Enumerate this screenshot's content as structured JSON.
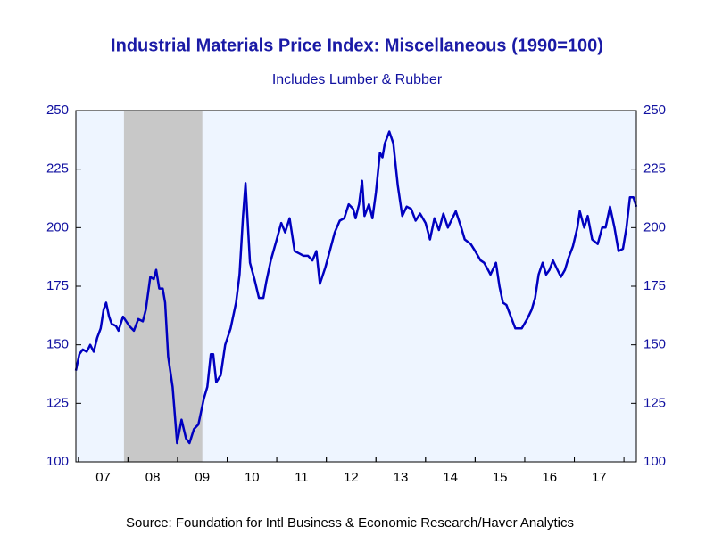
{
  "chart_data": {
    "type": "line",
    "title": "Industrial Materials Price Index: Miscellaneous (1990=100)",
    "subtitle": "Includes Lumber & Rubber",
    "source": "Source:  Foundation for Intl Business & Economic Research/Haver Analytics",
    "xlim": [
      2006.95,
      2018.25
    ],
    "xticks": [
      {
        "value": 2007.5,
        "label": "07"
      },
      {
        "value": 2008.5,
        "label": "08"
      },
      {
        "value": 2009.5,
        "label": "09"
      },
      {
        "value": 2010.5,
        "label": "10"
      },
      {
        "value": 2011.5,
        "label": "11"
      },
      {
        "value": 2012.5,
        "label": "12"
      },
      {
        "value": 2013.5,
        "label": "13"
      },
      {
        "value": 2014.5,
        "label": "14"
      },
      {
        "value": 2015.5,
        "label": "15"
      },
      {
        "value": 2016.5,
        "label": "16"
      },
      {
        "value": 2017.5,
        "label": "17"
      }
    ],
    "ylim": [
      100,
      250
    ],
    "yticks": [
      100,
      125,
      150,
      175,
      200,
      225,
      250
    ],
    "shading": [
      [
        2007.92,
        2009.5
      ]
    ],
    "x": [
      2006.95,
      2007.02,
      2007.09,
      2007.17,
      2007.24,
      2007.31,
      2007.38,
      2007.45,
      2007.51,
      2007.56,
      2007.62,
      2007.67,
      2007.76,
      2007.81,
      2007.9,
      2008.03,
      2008.12,
      2008.21,
      2008.3,
      2008.36,
      2008.45,
      2008.52,
      2008.57,
      2008.63,
      2008.7,
      2008.75,
      2008.81,
      2008.9,
      2008.99,
      2009.08,
      2009.17,
      2009.24,
      2009.33,
      2009.42,
      2009.53,
      2009.6,
      2009.67,
      2009.72,
      2009.78,
      2009.87,
      2009.96,
      2010.07,
      2010.18,
      2010.25,
      2010.32,
      2010.37,
      2010.46,
      2010.55,
      2010.64,
      2010.73,
      2010.79,
      2010.88,
      2011.0,
      2011.09,
      2011.17,
      2011.26,
      2011.36,
      2011.45,
      2011.54,
      2011.63,
      2011.72,
      2011.8,
      2011.87,
      2011.98,
      2012.07,
      2012.17,
      2012.27,
      2012.36,
      2012.45,
      2012.54,
      2012.59,
      2012.66,
      2012.72,
      2012.77,
      2012.86,
      2012.93,
      2013.0,
      2013.08,
      2013.13,
      2013.18,
      2013.27,
      2013.35,
      2013.44,
      2013.53,
      2013.62,
      2013.71,
      2013.8,
      2013.89,
      2014.0,
      2014.09,
      2014.18,
      2014.27,
      2014.36,
      2014.45,
      2014.61,
      2014.72,
      2014.79,
      2014.91,
      2015.0,
      2015.11,
      2015.18,
      2015.26,
      2015.31,
      2015.42,
      2015.49,
      2015.56,
      2015.63,
      2015.72,
      2015.81,
      2015.94,
      2016.05,
      2016.14,
      2016.21,
      2016.28,
      2016.36,
      2016.43,
      2016.5,
      2016.57,
      2016.66,
      2016.73,
      2016.81,
      2016.88,
      2016.97,
      2017.06,
      2017.11,
      2017.2,
      2017.27,
      2017.36,
      2017.47,
      2017.56,
      2017.63,
      2017.72,
      2017.81,
      2017.89,
      2017.98,
      2018.05,
      2018.12,
      2018.19,
      2018.25
    ],
    "series": [
      {
        "name": "Miscellaneous",
        "color": "#0000c0",
        "values": [
          139,
          146,
          148,
          147,
          150,
          147,
          153,
          157,
          165,
          168,
          162,
          159,
          158,
          156,
          162,
          158,
          156,
          161,
          160,
          165,
          179,
          178,
          182,
          174,
          174,
          168,
          145,
          132,
          108,
          118,
          110,
          108,
          114,
          116,
          127,
          132,
          146,
          146,
          134,
          137,
          150,
          157,
          168,
          180,
          205,
          219,
          185,
          178,
          170,
          170,
          177,
          186,
          195,
          202,
          198,
          204,
          190,
          189,
          188,
          188,
          186,
          190,
          176,
          183,
          190,
          198,
          203,
          204,
          210,
          208,
          204,
          210,
          220,
          205,
          210,
          204,
          215,
          232,
          230,
          236,
          241,
          236,
          218,
          205,
          209,
          208,
          203,
          206,
          202,
          195,
          204,
          199,
          206,
          200,
          207,
          200,
          195,
          193,
          190,
          186,
          185,
          182,
          180,
          185,
          175,
          168,
          167,
          162,
          157,
          157,
          161,
          165,
          170,
          180,
          185,
          180,
          182,
          186,
          182,
          179,
          182,
          187,
          192,
          200,
          207,
          200,
          205,
          195,
          193,
          200,
          200,
          209,
          200,
          190,
          191,
          200,
          213,
          213,
          209
        ]
      }
    ]
  }
}
